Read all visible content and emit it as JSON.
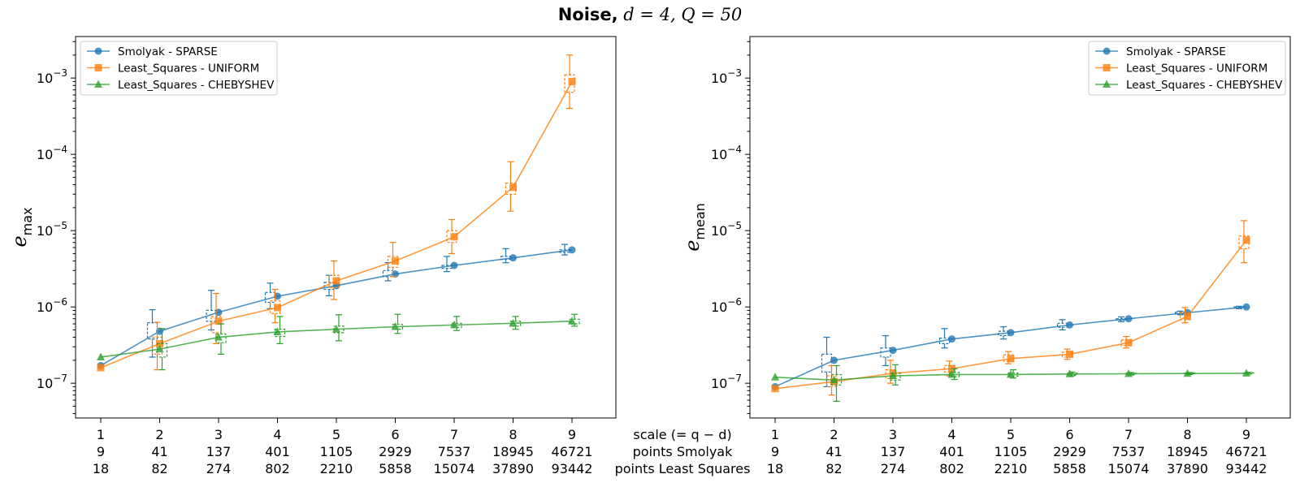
{
  "title": {
    "bold": "Noise,",
    "math": " d = 4, Q = 50"
  },
  "scale_labels": {
    "row1": "scale (= q − d)",
    "row2": "points Smolyak",
    "row3": "points Least Squares"
  },
  "x_ticks": {
    "scale": [
      "1",
      "2",
      "3",
      "4",
      "5",
      "6",
      "7",
      "8",
      "9"
    ],
    "points_smolyak": [
      "9",
      "41",
      "137",
      "401",
      "1105",
      "2929",
      "7537",
      "18945",
      "46721"
    ],
    "points_least_squares": [
      "18",
      "82",
      "274",
      "802",
      "2210",
      "5858",
      "15074",
      "37890",
      "93442"
    ]
  },
  "colors": {
    "Smolyak - SPARSE": "#1f77b4",
    "Least_Squares - UNIFORM": "#ff7f0e",
    "Least_Squares - CHEBYSHEV": "#2ca02c"
  },
  "chart_data": [
    {
      "type": "line",
      "yscale": "log",
      "ylim": [
        3.5e-08,
        0.0035
      ],
      "y_ticks": [
        1e-07,
        1e-06,
        1e-05,
        0.0001,
        0.001
      ],
      "ylabel": "e_max",
      "legend_position": "top-left",
      "x": [
        1,
        2,
        3,
        4,
        5,
        6,
        7,
        8,
        9
      ],
      "series": [
        {
          "name": "Smolyak - SPARSE",
          "marker": "circle",
          "values": [
            1.7e-07,
            4.8e-07,
            8.5e-07,
            1.38e-06,
            1.9e-06,
            2.7e-06,
            3.5e-06,
            4.4e-06,
            5.6e-06
          ],
          "box": [
            null,
            {
              "lo": 2.2e-07,
              "q1": 3.8e-07,
              "q3": 6.2e-07,
              "hi": 9.2e-07
            },
            {
              "lo": 5e-07,
              "q1": 6.5e-07,
              "q3": 9e-07,
              "hi": 1.65e-06
            },
            {
              "lo": 9.5e-07,
              "q1": 1.15e-06,
              "q3": 1.55e-06,
              "hi": 2.05e-06
            },
            {
              "lo": 1.4e-06,
              "q1": 1.7e-06,
              "q3": 2.1e-06,
              "hi": 2.6e-06
            },
            {
              "lo": 2.2e-06,
              "q1": 2.5e-06,
              "q3": 3e-06,
              "hi": 3.8e-06
            },
            {
              "lo": 2.9e-06,
              "q1": 3.2e-06,
              "q3": 3.5e-06,
              "hi": 4.6e-06
            },
            {
              "lo": 3.8e-06,
              "q1": 4.2e-06,
              "q3": 4.6e-06,
              "hi": 5.8e-06
            },
            {
              "lo": 4.8e-06,
              "q1": 5.2e-06,
              "q3": 5.6e-06,
              "hi": 6.6e-06
            }
          ]
        },
        {
          "name": "Least_Squares - UNIFORM",
          "marker": "square",
          "values": [
            1.6e-07,
            3.3e-07,
            6.5e-07,
            9.8e-07,
            2.2e-06,
            4e-06,
            8.3e-06,
            3.7e-05,
            0.0009
          ],
          "box": [
            null,
            {
              "lo": 1.5e-07,
              "q1": 2.4e-07,
              "q3": 4e-07,
              "hi": 6.3e-07
            },
            {
              "lo": 3.3e-07,
              "q1": 4.6e-07,
              "q3": 7.5e-07,
              "hi": 1.5e-06
            },
            {
              "lo": 6.2e-07,
              "q1": 8.2e-07,
              "q3": 1.2e-06,
              "hi": 1.7e-06
            },
            {
              "lo": 1.25e-06,
              "q1": 1.8e-06,
              "q3": 2.6e-06,
              "hi": 4e-06
            },
            {
              "lo": 2.5e-06,
              "q1": 3.3e-06,
              "q3": 4.6e-06,
              "hi": 7e-06
            },
            {
              "lo": 5e-06,
              "q1": 7e-06,
              "q3": 1e-05,
              "hi": 1.4e-05
            },
            {
              "lo": 1.8e-05,
              "q1": 3e-05,
              "q3": 4.2e-05,
              "hi": 8e-05
            },
            {
              "lo": 0.0004,
              "q1": 0.00065,
              "q3": 0.0011,
              "hi": 0.002
            }
          ]
        },
        {
          "name": "Least_Squares - CHEBYSHEV",
          "marker": "triangle",
          "values": [
            2.2e-07,
            2.8e-07,
            4e-07,
            4.7e-07,
            5.1e-07,
            5.5e-07,
            5.8e-07,
            6.1e-07,
            6.5e-07
          ],
          "box": [
            null,
            {
              "lo": 1.5e-07,
              "q1": 2.2e-07,
              "q3": 3.3e-07,
              "hi": 5.2e-07
            },
            {
              "lo": 2.4e-07,
              "q1": 3.4e-07,
              "q3": 4.4e-07,
              "hi": 6e-07
            },
            {
              "lo": 3.3e-07,
              "q1": 4.1e-07,
              "q3": 5.1e-07,
              "hi": 7.5e-07
            },
            {
              "lo": 3.6e-07,
              "q1": 4.6e-07,
              "q3": 5.6e-07,
              "hi": 7.9e-07
            },
            {
              "lo": 4.5e-07,
              "q1": 5.1e-07,
              "q3": 5.9e-07,
              "hi": 8e-07
            },
            {
              "lo": 4.9e-07,
              "q1": 5.4e-07,
              "q3": 6.1e-07,
              "hi": 7.5e-07
            },
            {
              "lo": 5.1e-07,
              "q1": 5.6e-07,
              "q3": 6.5e-07,
              "hi": 7.5e-07
            },
            {
              "lo": 5.6e-07,
              "q1": 6e-07,
              "q3": 6.9e-07,
              "hi": 8e-07
            }
          ]
        }
      ]
    },
    {
      "type": "line",
      "yscale": "log",
      "ylim": [
        3.5e-08,
        0.0035
      ],
      "y_ticks": [
        1e-07,
        1e-06,
        1e-05,
        0.0001,
        0.001
      ],
      "ylabel": "e_mean",
      "legend_position": "top-right",
      "x": [
        1,
        2,
        3,
        4,
        5,
        6,
        7,
        8,
        9
      ],
      "series": [
        {
          "name": "Smolyak - SPARSE",
          "marker": "circle",
          "values": [
            9e-08,
            2e-07,
            2.7e-07,
            3.8e-07,
            4.6e-07,
            5.8e-07,
            7e-07,
            8.4e-07,
            1e-06
          ],
          "box": [
            null,
            {
              "lo": 9e-08,
              "q1": 1.4e-07,
              "q3": 2.4e-07,
              "hi": 4e-07
            },
            {
              "lo": 1.7e-07,
              "q1": 2.2e-07,
              "q3": 2.9e-07,
              "hi": 4.2e-07
            },
            {
              "lo": 2.9e-07,
              "q1": 3.3e-07,
              "q3": 3.9e-07,
              "hi": 5.2e-07
            },
            {
              "lo": 3.8e-07,
              "q1": 4.2e-07,
              "q3": 4.8e-07,
              "hi": 5.5e-07
            },
            {
              "lo": 5e-07,
              "q1": 5.4e-07,
              "q3": 6.1e-07,
              "hi": 6.8e-07
            },
            {
              "lo": 6.4e-07,
              "q1": 6.7e-07,
              "q3": 7e-07,
              "hi": 7.4e-07
            },
            {
              "lo": 7.9e-07,
              "q1": 8.1e-07,
              "q3": 8.5e-07,
              "hi": 8.8e-07
            },
            {
              "lo": 9.5e-07,
              "q1": 9.7e-07,
              "q3": 1e-06,
              "hi": 1.02e-06
            }
          ]
        },
        {
          "name": "Least_Squares - UNIFORM",
          "marker": "square",
          "values": [
            8.5e-08,
            1.05e-07,
            1.35e-07,
            1.55e-07,
            2.1e-07,
            2.4e-07,
            3.4e-07,
            7.5e-07,
            7.5e-06
          ],
          "box": [
            null,
            {
              "lo": 7e-08,
              "q1": 9e-08,
              "q3": 1.25e-07,
              "hi": 1.7e-07
            },
            {
              "lo": 1e-07,
              "q1": 1.15e-07,
              "q3": 1.5e-07,
              "hi": 2e-07
            },
            {
              "lo": 1.25e-07,
              "q1": 1.4e-07,
              "q3": 1.7e-07,
              "hi": 1.95e-07
            },
            {
              "lo": 1.8e-07,
              "q1": 1.95e-07,
              "q3": 2.35e-07,
              "hi": 2.6e-07
            },
            {
              "lo": 2.05e-07,
              "q1": 2.2e-07,
              "q3": 2.55e-07,
              "hi": 2.8e-07
            },
            {
              "lo": 2.9e-07,
              "q1": 3.1e-07,
              "q3": 3.7e-07,
              "hi": 4.1e-07
            },
            {
              "lo": 6.2e-07,
              "q1": 6.8e-07,
              "q3": 8.4e-07,
              "hi": 9.8e-07
            },
            {
              "lo": 3.8e-06,
              "q1": 5.8e-06,
              "q3": 8.5e-06,
              "hi": 1.35e-05
            }
          ]
        },
        {
          "name": "Least_Squares - CHEBYSHEV",
          "marker": "triangle",
          "values": [
            1.2e-07,
            1.1e-07,
            1.25e-07,
            1.3e-07,
            1.3e-07,
            1.32e-07,
            1.33e-07,
            1.34e-07,
            1.35e-07
          ],
          "box": [
            null,
            {
              "lo": 5.8e-08,
              "q1": 9.5e-08,
              "q3": 1.3e-07,
              "hi": 1.7e-07
            },
            {
              "lo": 9.5e-08,
              "q1": 1.1e-07,
              "q3": 1.35e-07,
              "hi": 1.75e-07
            },
            {
              "lo": 1.12e-07,
              "q1": 1.22e-07,
              "q3": 1.38e-07,
              "hi": 1.55e-07
            },
            {
              "lo": 1.17e-07,
              "q1": 1.24e-07,
              "q3": 1.36e-07,
              "hi": 1.5e-07
            },
            {
              "lo": 1.25e-07,
              "q1": 1.28e-07,
              "q3": 1.35e-07,
              "hi": 1.4e-07
            },
            {
              "lo": 1.28e-07,
              "q1": 1.3e-07,
              "q3": 1.35e-07,
              "hi": 1.38e-07
            },
            {
              "lo": 1.3e-07,
              "q1": 1.32e-07,
              "q3": 1.36e-07,
              "hi": 1.38e-07
            },
            {
              "lo": 1.32e-07,
              "q1": 1.33e-07,
              "q3": 1.37e-07,
              "hi": 1.39e-07
            }
          ]
        }
      ]
    }
  ]
}
